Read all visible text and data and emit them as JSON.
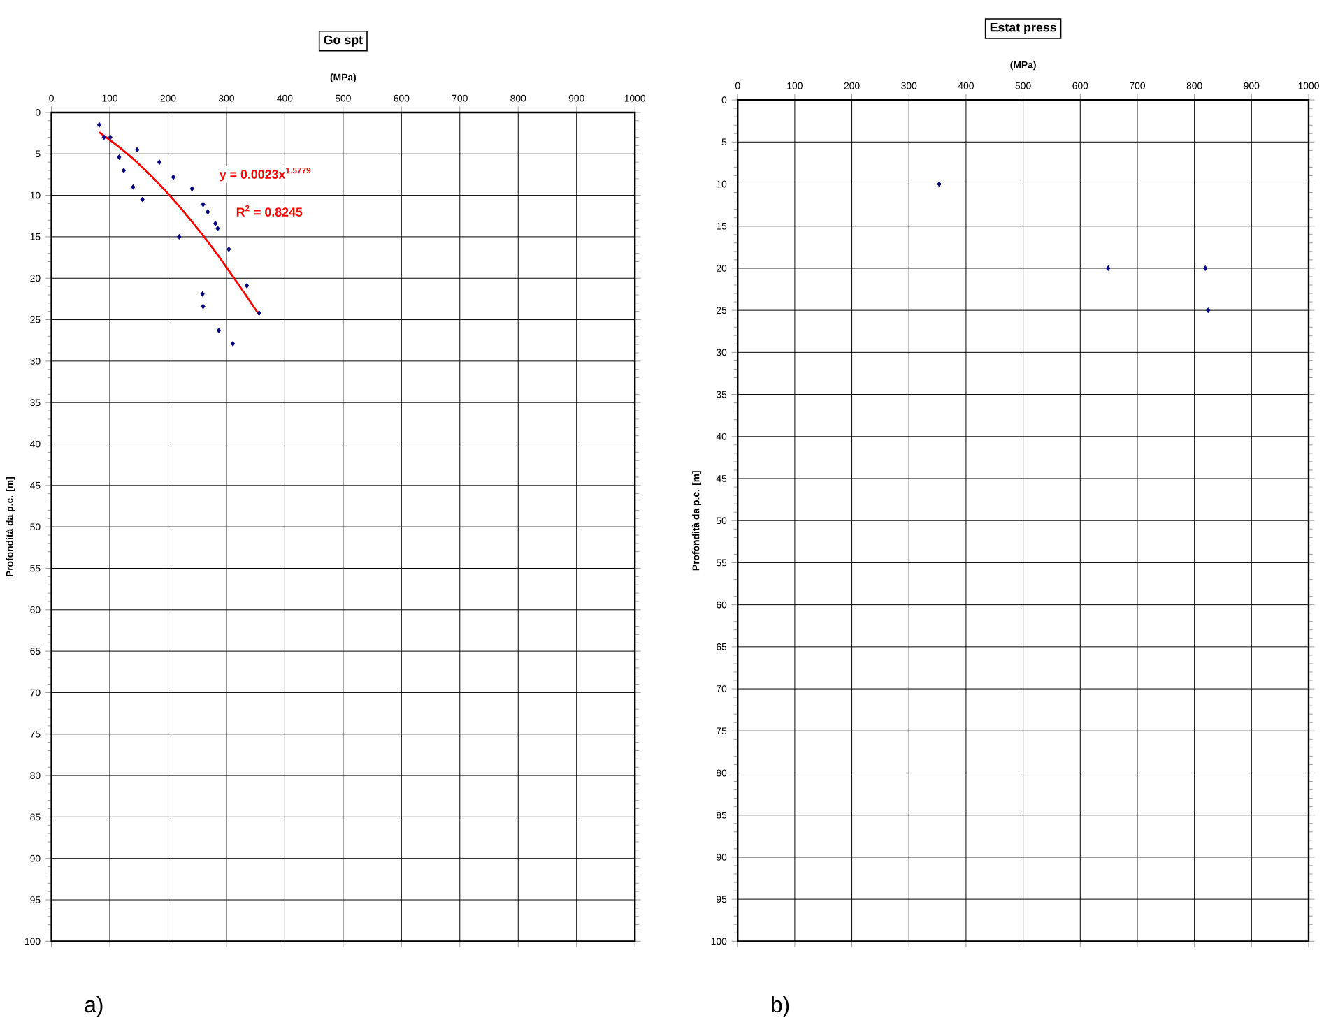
{
  "chart_data": [
    {
      "type": "scatter",
      "title": "Go spt",
      "xlabel": "(MPa)",
      "ylabel": "Profondità da p.c. [m]",
      "xlim": [
        0,
        1000
      ],
      "xticks": [
        0,
        100,
        200,
        300,
        400,
        500,
        600,
        700,
        800,
        900,
        1000
      ],
      "ylim": [
        100,
        0
      ],
      "yticks": [
        0,
        5,
        10,
        15,
        20,
        25,
        30,
        35,
        40,
        45,
        50,
        55,
        60,
        65,
        70,
        75,
        80,
        85,
        90,
        95,
        100
      ],
      "grid": true,
      "marker": "diamond",
      "series": [
        {
          "color": "#000080",
          "x": [
            82,
            90,
            101,
            116,
            147,
            124,
            140,
            156,
            185,
            209,
            219,
            241,
            260,
            268,
            281,
            285,
            304,
            335,
            259,
            260,
            356,
            287,
            311
          ],
          "values": [
            1.5,
            3.0,
            3.0,
            5.4,
            4.5,
            7.0,
            9.0,
            10.5,
            6.0,
            7.8,
            15.0,
            9.2,
            11.1,
            12.0,
            13.4,
            14.0,
            16.5,
            20.9,
            21.9,
            23.4,
            24.2,
            26.3,
            27.9
          ]
        },
        {
          "type": "line",
          "color": "#ff0000",
          "marker": "none",
          "x": [
            82,
            120,
            160,
            200,
            240,
            280,
            320,
            356
          ],
          "values": [
            2.4,
            4.4,
            6.9,
            9.8,
            13.1,
            16.7,
            20.7,
            24.4
          ]
        }
      ],
      "annotations": [
        "y = 0.0023x$^{1.5779}$",
        "R$^{2}$ = 0.8245",
        "a)"
      ]
    },
    {
      "type": "scatter",
      "title": "Estat press",
      "xlabel": "(MPa)",
      "ylabel": "Profondità da p.c. [m]",
      "xlim": [
        0,
        1000
      ],
      "xticks": [
        0,
        100,
        200,
        300,
        400,
        500,
        600,
        700,
        800,
        900,
        1000
      ],
      "ylim": [
        100,
        0
      ],
      "yticks": [
        0,
        5,
        10,
        15,
        20,
        25,
        30,
        35,
        40,
        45,
        50,
        55,
        60,
        65,
        70,
        75,
        80,
        85,
        90,
        95,
        100
      ],
      "grid": true,
      "marker": "diamond",
      "series": [
        {
          "color": "#000080",
          "x": [
            353,
            649,
            819,
            824
          ],
          "values": [
            10,
            20,
            20,
            25
          ]
        }
      ],
      "annotations": [
        "b)"
      ]
    }
  ]
}
